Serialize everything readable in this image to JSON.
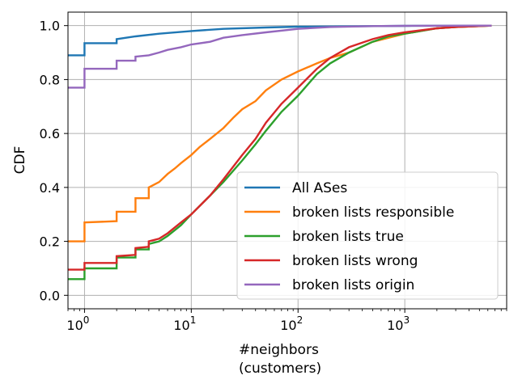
{
  "chart_data": {
    "type": "line",
    "xlabel_lines": [
      "#neighbors",
      "(customers)"
    ],
    "ylabel": "CDF",
    "xscale": "log",
    "xlim": [
      0.7,
      9000
    ],
    "ylim": [
      -0.05,
      1.05
    ],
    "grid": true,
    "legend_placement": "lower-right",
    "x_ticks": [
      {
        "value": 1,
        "base": "10",
        "exp": "0"
      },
      {
        "value": 10,
        "base": "10",
        "exp": "1"
      },
      {
        "value": 100,
        "base": "10",
        "exp": "2"
      },
      {
        "value": 1000,
        "base": "10",
        "exp": "3"
      }
    ],
    "y_ticks": [
      {
        "value": 0.0,
        "label": "0.0"
      },
      {
        "value": 0.2,
        "label": "0.2"
      },
      {
        "value": 0.4,
        "label": "0.4"
      },
      {
        "value": 0.6,
        "label": "0.6"
      },
      {
        "value": 0.8,
        "label": "0.8"
      },
      {
        "value": 1.0,
        "label": "1.0"
      }
    ],
    "series": [
      {
        "name": "All ASes",
        "color": "#1f77b4",
        "points": [
          [
            0.7,
            0.89
          ],
          [
            1,
            0.89
          ],
          [
            1,
            0.935
          ],
          [
            2,
            0.935
          ],
          [
            2,
            0.95
          ],
          [
            3,
            0.96
          ],
          [
            5,
            0.97
          ],
          [
            10,
            0.98
          ],
          [
            20,
            0.988
          ],
          [
            50,
            0.993
          ],
          [
            100,
            0.996
          ],
          [
            1000,
            0.999
          ],
          [
            6500,
            1.0
          ]
        ]
      },
      {
        "name": "broken lists responsible",
        "color": "#ff7f0e",
        "points": [
          [
            0.7,
            0.2
          ],
          [
            1,
            0.2
          ],
          [
            1,
            0.27
          ],
          [
            2,
            0.275
          ],
          [
            2,
            0.31
          ],
          [
            3,
            0.31
          ],
          [
            3,
            0.36
          ],
          [
            4,
            0.36
          ],
          [
            4,
            0.4
          ],
          [
            5,
            0.42
          ],
          [
            6,
            0.45
          ],
          [
            7,
            0.47
          ],
          [
            8,
            0.49
          ],
          [
            10,
            0.52
          ],
          [
            12,
            0.55
          ],
          [
            15,
            0.58
          ],
          [
            20,
            0.62
          ],
          [
            25,
            0.66
          ],
          [
            30,
            0.69
          ],
          [
            40,
            0.72
          ],
          [
            50,
            0.76
          ],
          [
            70,
            0.8
          ],
          [
            100,
            0.83
          ],
          [
            150,
            0.86
          ],
          [
            200,
            0.88
          ],
          [
            300,
            0.9
          ],
          [
            500,
            0.94
          ],
          [
            1000,
            0.97
          ],
          [
            2000,
            0.99
          ],
          [
            3000,
            0.995
          ],
          [
            6500,
            1.0
          ]
        ]
      },
      {
        "name": "broken lists true",
        "color": "#2ca02c",
        "points": [
          [
            0.7,
            0.06
          ],
          [
            1,
            0.06
          ],
          [
            1,
            0.1
          ],
          [
            2,
            0.1
          ],
          [
            2,
            0.14
          ],
          [
            3,
            0.14
          ],
          [
            3,
            0.17
          ],
          [
            4,
            0.17
          ],
          [
            4,
            0.19
          ],
          [
            5,
            0.2
          ],
          [
            6,
            0.22
          ],
          [
            8,
            0.26
          ],
          [
            10,
            0.3
          ],
          [
            15,
            0.37
          ],
          [
            20,
            0.42
          ],
          [
            30,
            0.5
          ],
          [
            40,
            0.56
          ],
          [
            50,
            0.61
          ],
          [
            70,
            0.68
          ],
          [
            100,
            0.74
          ],
          [
            150,
            0.82
          ],
          [
            200,
            0.86
          ],
          [
            300,
            0.9
          ],
          [
            500,
            0.94
          ],
          [
            700,
            0.96
          ],
          [
            1000,
            0.97
          ],
          [
            2000,
            0.99
          ],
          [
            3000,
            0.995
          ],
          [
            6500,
            1.0
          ]
        ]
      },
      {
        "name": "broken lists wrong",
        "color": "#d62728",
        "points": [
          [
            0.7,
            0.095
          ],
          [
            1,
            0.095
          ],
          [
            1,
            0.12
          ],
          [
            2,
            0.12
          ],
          [
            2,
            0.145
          ],
          [
            3,
            0.15
          ],
          [
            3,
            0.175
          ],
          [
            4,
            0.18
          ],
          [
            4,
            0.2
          ],
          [
            5,
            0.21
          ],
          [
            6,
            0.23
          ],
          [
            8,
            0.27
          ],
          [
            10,
            0.3
          ],
          [
            15,
            0.37
          ],
          [
            20,
            0.43
          ],
          [
            30,
            0.52
          ],
          [
            40,
            0.58
          ],
          [
            50,
            0.64
          ],
          [
            70,
            0.71
          ],
          [
            100,
            0.77
          ],
          [
            150,
            0.84
          ],
          [
            200,
            0.88
          ],
          [
            300,
            0.92
          ],
          [
            500,
            0.95
          ],
          [
            700,
            0.965
          ],
          [
            1000,
            0.975
          ],
          [
            2000,
            0.99
          ],
          [
            3000,
            0.995
          ],
          [
            6500,
            1.0
          ]
        ]
      },
      {
        "name": "broken lists origin",
        "color": "#9467bd",
        "points": [
          [
            0.7,
            0.77
          ],
          [
            1,
            0.77
          ],
          [
            1,
            0.84
          ],
          [
            2,
            0.84
          ],
          [
            2,
            0.87
          ],
          [
            3,
            0.87
          ],
          [
            3,
            0.885
          ],
          [
            4,
            0.89
          ],
          [
            5,
            0.9
          ],
          [
            6,
            0.91
          ],
          [
            8,
            0.92
          ],
          [
            10,
            0.93
          ],
          [
            15,
            0.94
          ],
          [
            20,
            0.955
          ],
          [
            30,
            0.965
          ],
          [
            50,
            0.975
          ],
          [
            100,
            0.988
          ],
          [
            200,
            0.995
          ],
          [
            500,
            0.998
          ],
          [
            1000,
            0.999
          ],
          [
            6500,
            1.0
          ]
        ]
      }
    ]
  }
}
